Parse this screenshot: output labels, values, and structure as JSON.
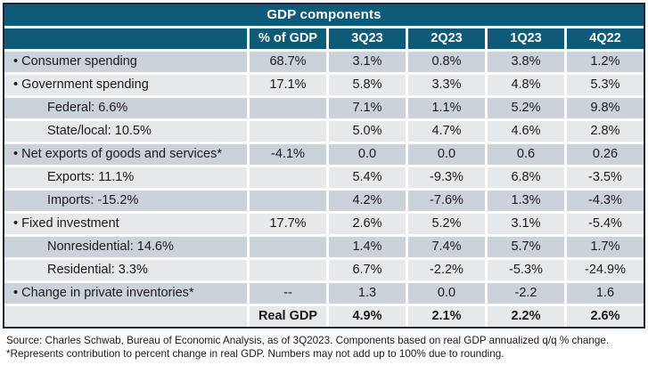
{
  "colors": {
    "header_teal": "#0d5b78",
    "row_dark": "#ccd2d9",
    "row_light": "#e6e9ec",
    "border_dark": "#1d2935",
    "header_text": "#ffffff",
    "body_text": "#1a1a1a"
  },
  "footer": {
    "line1": "Source: Charles Schwab, Bureau of Economic Analysis, as of 3Q2023. Components based on real GDP annualized q/q % change.",
    "line2": "*Represents contribution to percent change in real GDP. Numbers may not add up to 100% due to rounding."
  },
  "chart_data": {
    "type": "table",
    "title": "GDP components",
    "columns": [
      "",
      "% of GDP",
      "3Q23",
      "2Q23",
      "1Q23",
      "4Q22"
    ],
    "rows": [
      {
        "label": "Consumer spending",
        "bullet": true,
        "indent": false,
        "pct": "68.7%",
        "values": [
          "3.1%",
          "0.8%",
          "3.8%",
          "1.2%"
        ],
        "shade": "dark",
        "bold": false
      },
      {
        "label": "Government spending",
        "bullet": true,
        "indent": false,
        "pct": "17.1%",
        "values": [
          "5.8%",
          "3.3%",
          "4.8%",
          "5.3%"
        ],
        "shade": "light",
        "bold": false
      },
      {
        "label": "Federal: 6.6%",
        "bullet": false,
        "indent": true,
        "pct": "",
        "values": [
          "7.1%",
          "1.1%",
          "5.2%",
          "9.8%"
        ],
        "shade": "dark",
        "bold": false
      },
      {
        "label": "State/local: 10.5%",
        "bullet": false,
        "indent": true,
        "pct": "",
        "values": [
          "5.0%",
          "4.7%",
          "4.6%",
          "2.8%"
        ],
        "shade": "light",
        "bold": false
      },
      {
        "label": "Net exports of goods and services*",
        "bullet": true,
        "indent": false,
        "pct": "-4.1%",
        "values": [
          "0.0",
          "0.0",
          "0.6",
          "0.26"
        ],
        "shade": "dark",
        "bold": false
      },
      {
        "label": "Exports: 11.1%",
        "bullet": false,
        "indent": true,
        "pct": "",
        "values": [
          "5.4%",
          "-9.3%",
          "6.8%",
          "-3.5%"
        ],
        "shade": "light",
        "bold": false
      },
      {
        "label": "Imports: -15.2%",
        "bullet": false,
        "indent": true,
        "pct": "",
        "values": [
          "4.2%",
          "-7.6%",
          "1.3%",
          "-4.3%"
        ],
        "shade": "dark",
        "bold": false
      },
      {
        "label": "Fixed investment",
        "bullet": true,
        "indent": false,
        "pct": "17.7%",
        "values": [
          "2.6%",
          "5.2%",
          "3.1%",
          "-5.4%"
        ],
        "shade": "light",
        "bold": false
      },
      {
        "label": "Nonresidential: 14.6%",
        "bullet": false,
        "indent": true,
        "pct": "",
        "values": [
          "1.4%",
          "7.4%",
          "5.7%",
          "1.7%"
        ],
        "shade": "dark",
        "bold": false
      },
      {
        "label": "Residential: 3.3%",
        "bullet": false,
        "indent": true,
        "pct": "",
        "values": [
          "6.7%",
          "-2.2%",
          "-5.3%",
          "-24.9%"
        ],
        "shade": "light",
        "bold": false
      },
      {
        "label": "Change in private inventories*",
        "bullet": true,
        "indent": false,
        "pct": "--",
        "values": [
          "1.3",
          "0.0",
          "-2.2",
          "1.6"
        ],
        "shade": "dark",
        "bold": false
      },
      {
        "label": "",
        "bullet": false,
        "indent": false,
        "pct": "Real GDP",
        "values": [
          "4.9%",
          "2.1%",
          "2.2%",
          "2.6%"
        ],
        "shade": "light",
        "bold": true
      }
    ]
  }
}
